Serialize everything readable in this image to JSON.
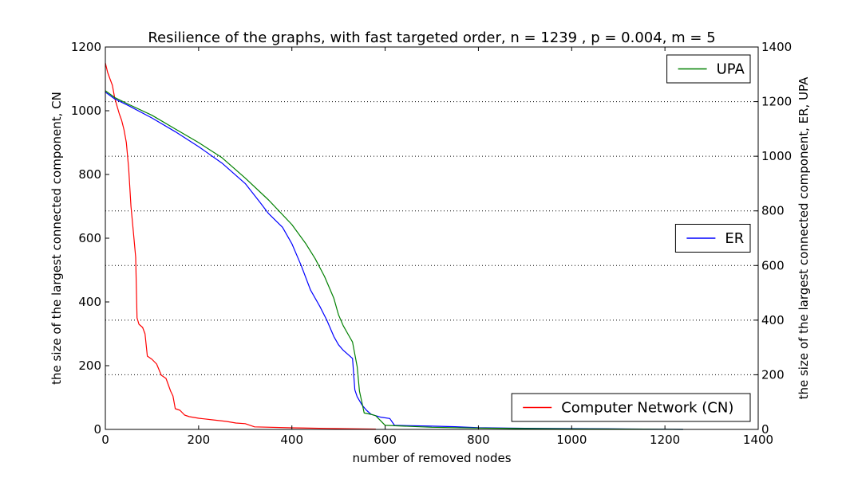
{
  "chart_data": {
    "type": "line",
    "title": "Resilience of the graphs, with fast targeted order, n = 1239 , p = 0.004, m = 5",
    "xlabel": "number of removed nodes",
    "ylabel_left": "the size of the largest connected component, CN",
    "ylabel_right": "the size of the largest connected component, ER, UPA",
    "xlim": [
      0,
      1400
    ],
    "ylim_left": [
      0,
      1200
    ],
    "ylim_right": [
      0,
      1400
    ],
    "x_ticks": [
      "0",
      "200",
      "400",
      "600",
      "800",
      "1000",
      "1200",
      "1400"
    ],
    "y_ticks_left": [
      "0",
      "200",
      "400",
      "600",
      "800",
      "1000",
      "1200"
    ],
    "y_ticks_right": [
      "0",
      "200",
      "400",
      "600",
      "800",
      "1000",
      "1200",
      "1400"
    ],
    "grid": "dotted horizontal lines at right-axis ticks",
    "series": [
      {
        "name": "Computer Network (CN)",
        "axis": "left",
        "color": "#ff0000",
        "legend_position": "lower-right",
        "points": [
          [
            0,
            1150
          ],
          [
            5,
            1120
          ],
          [
            10,
            1100
          ],
          [
            15,
            1080
          ],
          [
            20,
            1040
          ],
          [
            25,
            1015
          ],
          [
            30,
            990
          ],
          [
            35,
            970
          ],
          [
            40,
            940
          ],
          [
            45,
            900
          ],
          [
            50,
            820
          ],
          [
            55,
            700
          ],
          [
            60,
            620
          ],
          [
            65,
            540
          ],
          [
            68,
            350
          ],
          [
            72,
            330
          ],
          [
            80,
            320
          ],
          [
            85,
            300
          ],
          [
            90,
            230
          ],
          [
            100,
            220
          ],
          [
            110,
            205
          ],
          [
            120,
            170
          ],
          [
            130,
            160
          ],
          [
            140,
            120
          ],
          [
            145,
            105
          ],
          [
            150,
            65
          ],
          [
            160,
            60
          ],
          [
            170,
            45
          ],
          [
            180,
            40
          ],
          [
            200,
            35
          ],
          [
            230,
            30
          ],
          [
            260,
            25
          ],
          [
            280,
            20
          ],
          [
            300,
            18
          ],
          [
            320,
            8
          ],
          [
            400,
            5
          ],
          [
            480,
            3
          ],
          [
            580,
            1
          ]
        ]
      },
      {
        "name": "ER",
        "axis": "right",
        "color": "#0000ff",
        "legend_position": "center-right",
        "points": [
          [
            0,
            1235
          ],
          [
            20,
            1210
          ],
          [
            50,
            1185
          ],
          [
            100,
            1140
          ],
          [
            150,
            1090
          ],
          [
            200,
            1035
          ],
          [
            250,
            975
          ],
          [
            300,
            900
          ],
          [
            330,
            835
          ],
          [
            350,
            790
          ],
          [
            380,
            740
          ],
          [
            400,
            680
          ],
          [
            420,
            600
          ],
          [
            440,
            510
          ],
          [
            460,
            450
          ],
          [
            475,
            400
          ],
          [
            490,
            340
          ],
          [
            500,
            310
          ],
          [
            510,
            290
          ],
          [
            530,
            260
          ],
          [
            535,
            145
          ],
          [
            540,
            120
          ],
          [
            550,
            90
          ],
          [
            560,
            70
          ],
          [
            570,
            55
          ],
          [
            590,
            45
          ],
          [
            610,
            40
          ],
          [
            620,
            15
          ],
          [
            700,
            12
          ],
          [
            750,
            10
          ],
          [
            800,
            6
          ],
          [
            900,
            4
          ],
          [
            1000,
            3
          ],
          [
            1100,
            2
          ],
          [
            1239,
            0
          ]
        ]
      },
      {
        "name": "UPA",
        "axis": "right",
        "color": "#008000",
        "legend_position": "top-right",
        "points": [
          [
            0,
            1240
          ],
          [
            20,
            1215
          ],
          [
            50,
            1190
          ],
          [
            100,
            1150
          ],
          [
            150,
            1100
          ],
          [
            200,
            1050
          ],
          [
            250,
            995
          ],
          [
            300,
            920
          ],
          [
            350,
            840
          ],
          [
            400,
            750
          ],
          [
            430,
            680
          ],
          [
            450,
            625
          ],
          [
            470,
            560
          ],
          [
            490,
            480
          ],
          [
            500,
            420
          ],
          [
            510,
            380
          ],
          [
            520,
            350
          ],
          [
            530,
            320
          ],
          [
            540,
            230
          ],
          [
            545,
            140
          ],
          [
            550,
            100
          ],
          [
            555,
            60
          ],
          [
            570,
            55
          ],
          [
            580,
            50
          ],
          [
            600,
            15
          ],
          [
            700,
            8
          ],
          [
            800,
            5
          ],
          [
            900,
            3
          ],
          [
            1000,
            2
          ],
          [
            1239,
            0
          ]
        ]
      }
    ]
  }
}
